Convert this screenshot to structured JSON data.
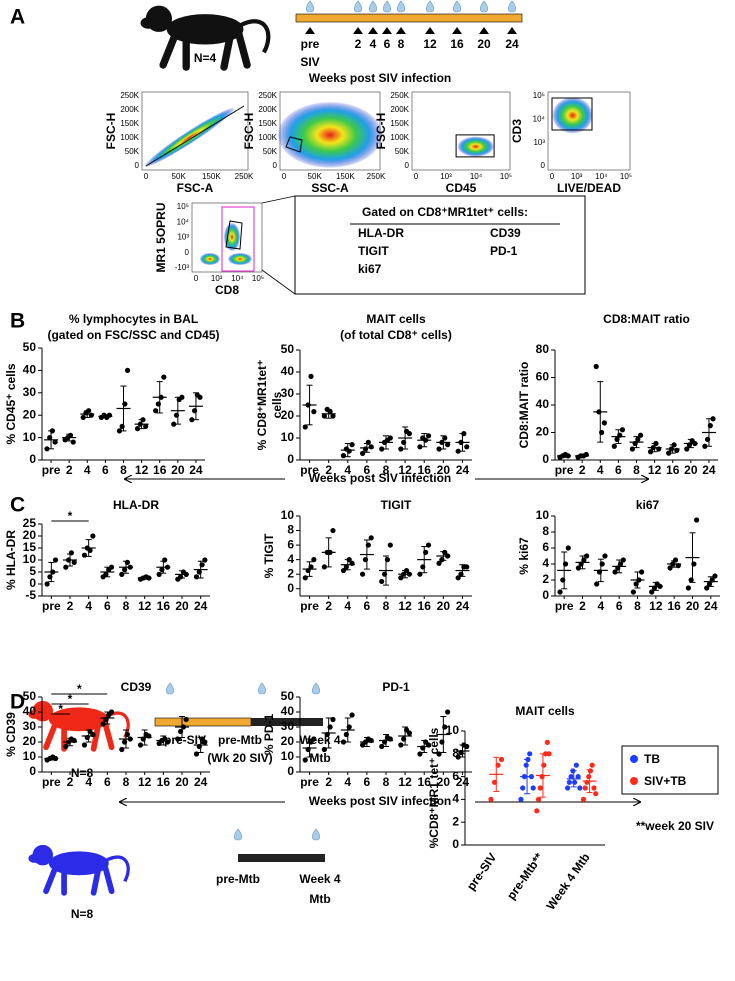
{
  "panel_labels": [
    "A",
    "B",
    "C",
    "D"
  ],
  "timeline": {
    "n": "N=4",
    "pre": "pre",
    "siv": "SIV",
    "weeks": [
      "2",
      "4",
      "6",
      "8",
      "12",
      "16",
      "20",
      "24"
    ],
    "xlabel": "Weeks post SIV infection"
  },
  "flow_plots": [
    {
      "xlabel": "FSC-A",
      "ylabel": "FSC-H",
      "xticks": [
        "0",
        "50K",
        "150K",
        "250K"
      ],
      "yticks": [
        "250K",
        "200K",
        "150K",
        "100K",
        "50K",
        "0"
      ]
    },
    {
      "xlabel": "SSC-A",
      "ylabel": "FSC-H",
      "xticks": [
        "0",
        "50K",
        "150K",
        "250K"
      ],
      "yticks": [
        "250K",
        "200K",
        "150K",
        "100K",
        "50K",
        "0"
      ]
    },
    {
      "xlabel": "CD45",
      "ylabel": "FSC-H",
      "xticks": [
        "0",
        "10³",
        "10⁴",
        "10⁵"
      ],
      "yticks": [
        "250K",
        "200K",
        "150K",
        "100K",
        "50K",
        "0"
      ]
    },
    {
      "xlabel": "LIVE/DEAD",
      "ylabel": "CD3",
      "xticks": [
        "0",
        "10³",
        "10⁴",
        "10⁵"
      ],
      "yticks": [
        "10⁵",
        "10⁴",
        "10³",
        "0"
      ]
    },
    {
      "xlabel": "CD8",
      "ylabel": "MR1 5OPRU",
      "xticks": [
        "0",
        "10³",
        "10⁴",
        "10⁵"
      ],
      "yticks": [
        "10⁵",
        "10⁴",
        "10³",
        "0",
        "-10³"
      ]
    }
  ],
  "gate_box": {
    "title": "Gated on CD8⁺MR1tet⁺ cells:",
    "markers": [
      "HLA-DR",
      "CD39",
      "TIGIT",
      "PD-1",
      "ki67"
    ]
  },
  "b_xlabel": "Weeks post SIV infection",
  "c_xlabel": "Weeks post SIV infection",
  "study_design": {
    "siv_group": {
      "n": "N=8",
      "start": "pre-SIV",
      "mid": "pre-Mtb",
      "mid_note": "(Wk 20 SIV)",
      "end": "Week 4",
      "end_note": "Mtb"
    },
    "tb_group": {
      "n": "N=8",
      "start": "pre-Mtb",
      "end": "Week 4",
      "end_note": "Mtb"
    },
    "note": "**week 20 SIV"
  },
  "chart_data": [
    {
      "type": "dot",
      "title": "% lymphocytes in BAL",
      "subtitle": "(gated on FSC/SSC and CD45)",
      "ylabel": "% CD45⁺ cells",
      "color": "#000000",
      "categories": [
        "pre",
        "2",
        "4",
        "6",
        "8",
        "12",
        "16",
        "20",
        "24"
      ],
      "ylim": [
        0,
        50
      ],
      "yticks": [
        0,
        10,
        20,
        30,
        40,
        50
      ],
      "points": [
        [
          5,
          10,
          13,
          8
        ],
        [
          9,
          10,
          11,
          8
        ],
        [
          19,
          21,
          22,
          20
        ],
        [
          19,
          20,
          19,
          20
        ],
        [
          13,
          15,
          25,
          40
        ],
        [
          14,
          16,
          18,
          15
        ],
        [
          22,
          25,
          28,
          37
        ],
        [
          16,
          20,
          27,
          28
        ],
        [
          18,
          22,
          29,
          28
        ]
      ],
      "mean": [
        9,
        10,
        20.5,
        19.5,
        23,
        16,
        28,
        22,
        24
      ],
      "sd": [
        4,
        1.5,
        1.5,
        0.7,
        10,
        2,
        7,
        6,
        6
      ]
    },
    {
      "type": "dot",
      "title": "MAIT cells",
      "subtitle": "(of total CD8⁺ cells)",
      "ylabel": [
        "% CD8⁺MR1tet⁺",
        "cells"
      ],
      "color": "#000000",
      "categories": [
        "pre",
        "2",
        "4",
        "6",
        "8",
        "12",
        "16",
        "20",
        "24"
      ],
      "ylim": [
        0,
        50
      ],
      "yticks": [
        0,
        10,
        20,
        30,
        40,
        50
      ],
      "points": [
        [
          15,
          25,
          38,
          22
        ],
        [
          20,
          23,
          22,
          20
        ],
        [
          2,
          5,
          4,
          7
        ],
        [
          3,
          5,
          8,
          6
        ],
        [
          5,
          8,
          9,
          10
        ],
        [
          5,
          8,
          13,
          12
        ],
        [
          6,
          10,
          9,
          11
        ],
        [
          5,
          8,
          10,
          7
        ],
        [
          4,
          8,
          12,
          6
        ]
      ],
      "mean": [
        25,
        21,
        4.5,
        5.5,
        8,
        10,
        9,
        8,
        8
      ],
      "sd": [
        9,
        2,
        3,
        2,
        3,
        5,
        3,
        3,
        4
      ]
    },
    {
      "type": "dot",
      "title": "CD8:MAIT ratio",
      "ylabel": "CD8:MAIT ratio",
      "color": "#000000",
      "categories": [
        "pre",
        "2",
        "4",
        "6",
        "8",
        "12",
        "16",
        "20",
        "24"
      ],
      "ylim": [
        0,
        80
      ],
      "yticks": [
        0,
        20,
        40,
        60,
        80
      ],
      "points": [
        [
          2,
          3,
          4,
          3
        ],
        [
          2,
          3,
          3,
          4
        ],
        [
          68,
          35,
          20,
          27
        ],
        [
          10,
          15,
          18,
          22
        ],
        [
          8,
          12,
          15,
          18
        ],
        [
          6,
          9,
          12,
          8
        ],
        [
          5,
          8,
          11,
          7
        ],
        [
          8,
          11,
          14,
          12
        ],
        [
          10,
          15,
          25,
          30
        ]
      ],
      "mean": [
        3,
        3,
        35,
        17,
        13,
        9,
        8,
        12,
        20
      ],
      "sd": [
        1,
        1,
        22,
        5,
        4,
        3,
        3,
        3,
        10
      ]
    },
    {
      "type": "dot",
      "title": "HLA-DR",
      "ylabel": "% HLA-DR",
      "color": "#000000",
      "categories": [
        "pre",
        "2",
        "4",
        "6",
        "8",
        "12",
        "16",
        "20",
        "24"
      ],
      "ylim": [
        -5,
        25
      ],
      "yticks": [
        -5,
        0,
        5,
        10,
        15,
        20,
        25
      ],
      "points": [
        [
          0,
          3,
          5,
          10
        ],
        [
          7,
          10,
          13,
          9
        ],
        [
          12,
          15,
          14,
          20
        ],
        [
          3,
          4,
          6,
          7
        ],
        [
          4,
          6,
          9,
          7
        ],
        [
          2,
          2.5,
          3,
          2.5
        ],
        [
          4,
          6,
          10,
          7
        ],
        [
          2,
          3,
          5,
          4
        ],
        [
          3,
          5,
          8,
          10
        ]
      ],
      "mean": [
        5,
        10,
        15,
        5,
        7,
        2.5,
        7,
        4,
        6
      ],
      "sd": [
        4,
        2.5,
        3.5,
        2,
        2.5,
        0.5,
        2.5,
        1.5,
        3.5
      ],
      "significance": [
        {
          "from": "pre",
          "to": "4",
          "label": "*"
        }
      ]
    },
    {
      "type": "dot",
      "title": "TIGIT",
      "ylabel": "% TIGIT",
      "color": "#000000",
      "categories": [
        "pre",
        "2",
        "4",
        "6",
        "8",
        "12",
        "16",
        "20",
        "24"
      ],
      "ylim": [
        -1,
        10
      ],
      "yticks": [
        0,
        2,
        4,
        6,
        8,
        10
      ],
      "points": [
        [
          1.5,
          2.5,
          3,
          4
        ],
        [
          3,
          5,
          5,
          8
        ],
        [
          2.5,
          3,
          4,
          3.5
        ],
        [
          2,
          4,
          6,
          7
        ],
        [
          1,
          2,
          4,
          6
        ],
        [
          1.5,
          2,
          2.5,
          2
        ],
        [
          2,
          3,
          5,
          6
        ],
        [
          3.5,
          4,
          5,
          4.5
        ],
        [
          1.5,
          2,
          3,
          3
        ]
      ],
      "mean": [
        2.7,
        5,
        3.3,
        4.7,
        2.5,
        2,
        4,
        4.5,
        2.5
      ],
      "sd": [
        1,
        2,
        0.7,
        2,
        2,
        0.5,
        1.8,
        0.6,
        0.8
      ]
    },
    {
      "type": "dot",
      "title": "ki67",
      "ylabel": "% ki67",
      "color": "#000000",
      "categories": [
        "pre",
        "2",
        "4",
        "6",
        "8",
        "12",
        "16",
        "20",
        "24"
      ],
      "ylim": [
        0,
        10
      ],
      "yticks": [
        0,
        2,
        4,
        6,
        8,
        10
      ],
      "points": [
        [
          0.5,
          2,
          4,
          6
        ],
        [
          3.5,
          4,
          4.5,
          5
        ],
        [
          1.5,
          3,
          4,
          5
        ],
        [
          3,
          3.5,
          4,
          4.5
        ],
        [
          0.5,
          1.5,
          2,
          3
        ],
        [
          0.5,
          1,
          1.5,
          1.2
        ],
        [
          3.5,
          4,
          4.5,
          3.8
        ],
        [
          1,
          2,
          4,
          9.5
        ],
        [
          1,
          1.5,
          2,
          2.5
        ]
      ],
      "mean": [
        3.2,
        4.2,
        3.2,
        3.7,
        2,
        1.2,
        4,
        4.8,
        1.8
      ],
      "sd": [
        2.3,
        0.8,
        1.4,
        0.8,
        1,
        0.5,
        0.4,
        3.1,
        0.6
      ]
    },
    {
      "type": "dot",
      "title": "CD39",
      "ylabel": "% CD39",
      "color": "#000000",
      "categories": [
        "pre",
        "2",
        "4",
        "6",
        "8",
        "12",
        "16",
        "20",
        "24"
      ],
      "ylim": [
        0,
        50
      ],
      "yticks": [
        0,
        10,
        20,
        30,
        40,
        50
      ],
      "points": [
        [
          8,
          9,
          10,
          9
        ],
        [
          17,
          20,
          22,
          21
        ],
        [
          18,
          23,
          27,
          25
        ],
        [
          32,
          35,
          38,
          40
        ],
        [
          15,
          20,
          25,
          22
        ],
        [
          18,
          22,
          25,
          24
        ],
        [
          19,
          21,
          22,
          20
        ],
        [
          22,
          27,
          30,
          35
        ],
        [
          12,
          17,
          22,
          20
        ]
      ],
      "mean": [
        9,
        20,
        24,
        36,
        22,
        23,
        21,
        30,
        18
      ],
      "sd": [
        1,
        2.5,
        4,
        4,
        6,
        5,
        3,
        7,
        5
      ],
      "significance": [
        {
          "from": "pre",
          "to": "6",
          "label": "*"
        },
        {
          "from": "pre",
          "to": "4",
          "label": "*"
        },
        {
          "from": "pre",
          "to": "2",
          "label": "*"
        }
      ]
    },
    {
      "type": "dot",
      "title": "PD-1",
      "ylabel": "% PD-1",
      "color": "#000000",
      "categories": [
        "pre",
        "2",
        "4",
        "6",
        "8",
        "12",
        "16",
        "20",
        "24"
      ],
      "ylim": [
        0,
        50
      ],
      "yticks": [
        0,
        10,
        20,
        30,
        40,
        50
      ],
      "points": [
        [
          8,
          15,
          20,
          22
        ],
        [
          15,
          25,
          30,
          35
        ],
        [
          20,
          25,
          30,
          38
        ],
        [
          18,
          20,
          22,
          21
        ],
        [
          17,
          20,
          23,
          22
        ],
        [
          18,
          22,
          28,
          26
        ],
        [
          12,
          16,
          20,
          18
        ],
        [
          12,
          20,
          30,
          40
        ],
        [
          10,
          13,
          18,
          17
        ]
      ],
      "mean": [
        16,
        26,
        28,
        20,
        21,
        24,
        17,
        25,
        14
      ],
      "sd": [
        6,
        10,
        8,
        3,
        4,
        6,
        4,
        12,
        4
      ]
    },
    {
      "type": "grouped-dot",
      "title": "MAIT cells",
      "ylabel": "%CD8⁺MR1 tet⁺ cells",
      "legend": "right",
      "categories": [
        "pre-SIV",
        "pre-Mtb**",
        "Week 4 Mtb"
      ],
      "ylim": [
        0,
        10
      ],
      "yticks": [
        0,
        2,
        4,
        6,
        8,
        10
      ],
      "series": [
        {
          "name": "TB",
          "color": "#1f3dff",
          "points": [
            null,
            [
              4,
              5,
              6,
              7,
              7.5,
              8,
              6,
              5
            ],
            [
              5,
              5.5,
              6,
              6.5,
              5.5,
              7,
              6,
              5
            ]
          ],
          "mean": [
            null,
            6,
            5.8
          ],
          "sd": [
            null,
            1.5,
            0.7
          ]
        },
        {
          "name": "SIV+TB",
          "color": "#ff2a1a",
          "points": [
            [
              4,
              5.5,
              7,
              7.5
            ],
            [
              3,
              4,
              5,
              6,
              7,
              8,
              9,
              8
            ],
            [
              4,
              5,
              5.5,
              6,
              6.5,
              7,
              5,
              4.5
            ]
          ],
          "mean": [
            6.2,
            6.1,
            5.6
          ],
          "sd": [
            1.5,
            1.9,
            1
          ]
        }
      ]
    }
  ]
}
